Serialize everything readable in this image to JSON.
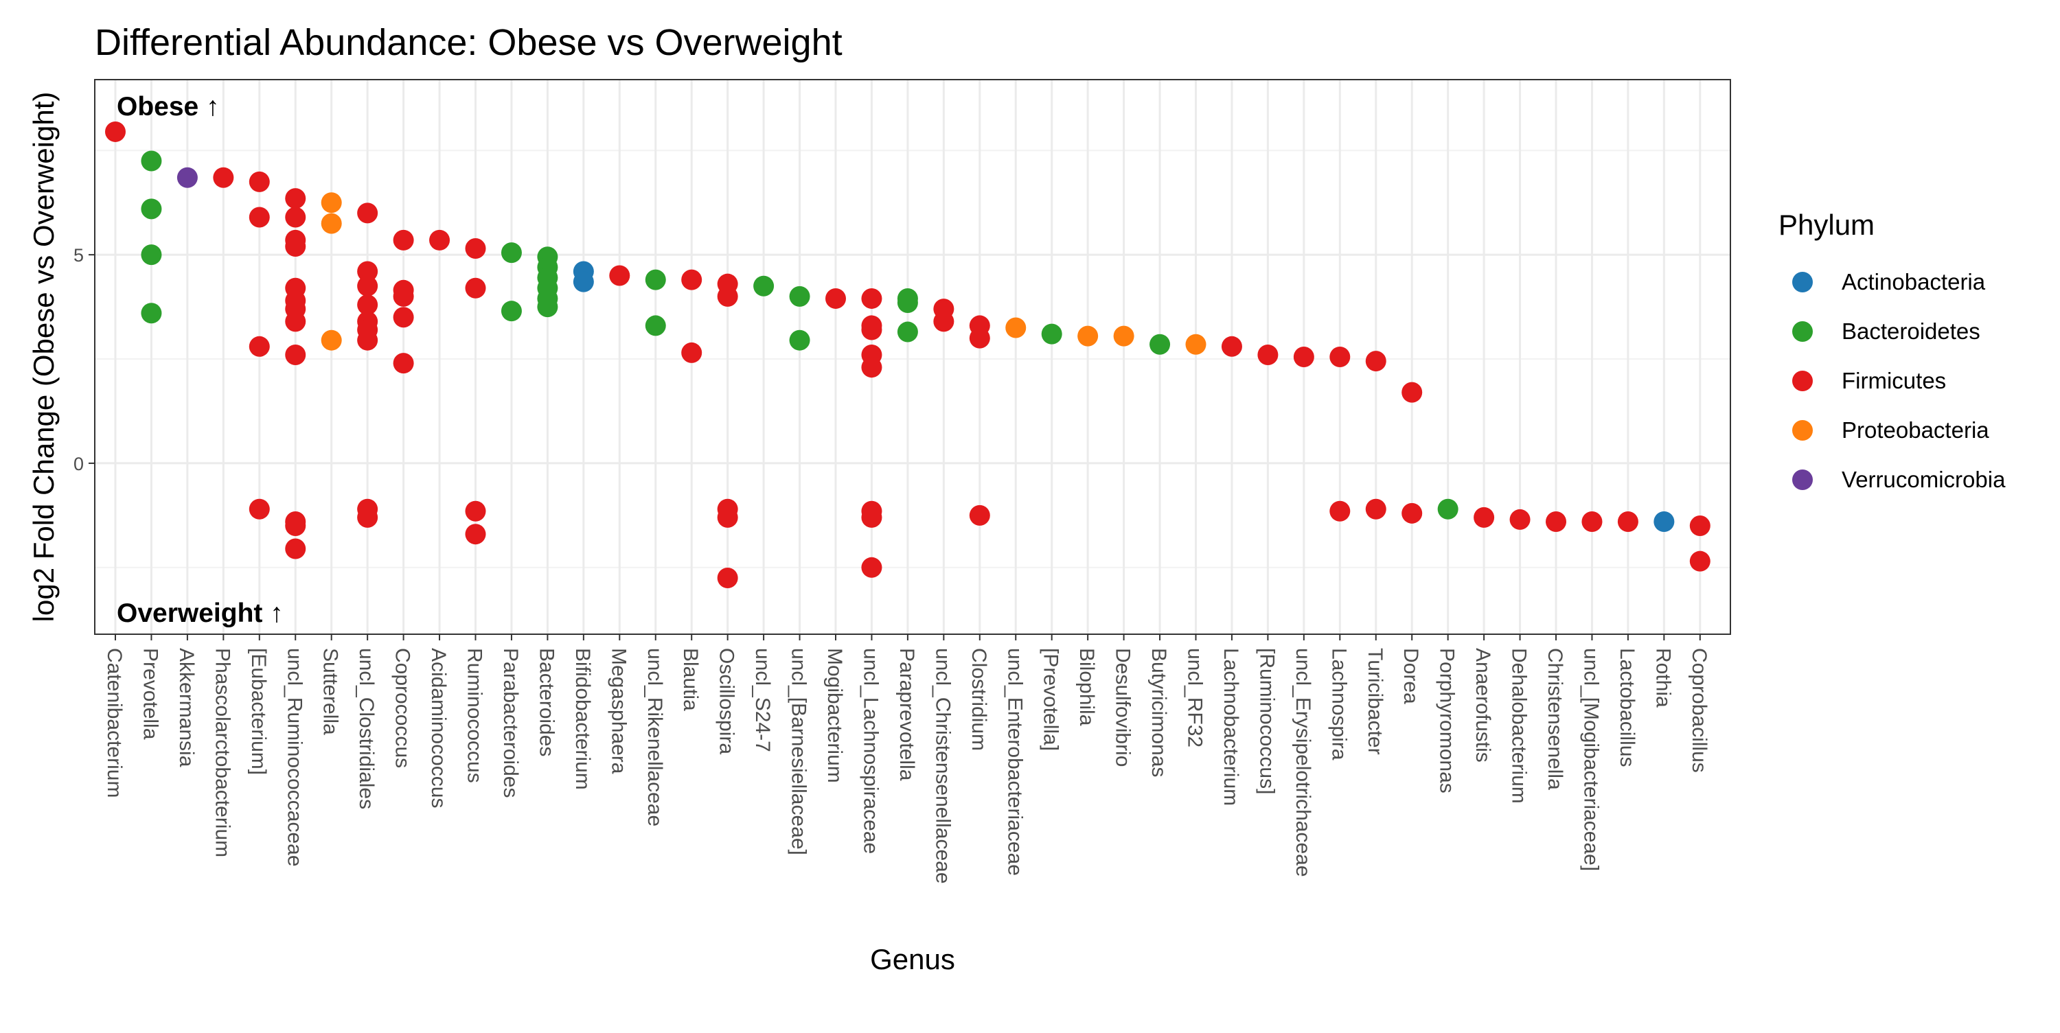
{
  "chart_data": {
    "type": "scatter",
    "title": "Differential Abundance: Obese vs Overweight",
    "xlabel": "Genus",
    "ylabel": "log2 Fold Change (Obese vs Overweight)",
    "ylim": [
      -4.1,
      9.2
    ],
    "yticks": [
      0,
      5
    ],
    "grid": true,
    "legend": {
      "title": "Phylum",
      "position": "right",
      "entries": [
        {
          "name": "Actinobacteria",
          "color": "#1f78b4"
        },
        {
          "name": "Bacteroidetes",
          "color": "#2ca02c"
        },
        {
          "name": "Firmicutes",
          "color": "#e31a1c"
        },
        {
          "name": "Proteobacteria",
          "color": "#ff7f0e"
        },
        {
          "name": "Verrucomicrobia",
          "color": "#6a3d9a"
        }
      ]
    },
    "annotations": [
      {
        "text": "Obese ↑",
        "position": "top-left"
      },
      {
        "text": "Overweight ↑",
        "position": "bottom-left"
      }
    ],
    "categories": [
      "Catenibacterium",
      "Prevotella",
      "Akkermansia",
      "Phascolarctobacterium",
      "[Eubacterium]",
      "uncl_Ruminococcaceae",
      "Sutterella",
      "uncl_Clostridiales",
      "Coprococcus",
      "Acidaminococcus",
      "Ruminococcus",
      "Parabacteroides",
      "Bacteroides",
      "Bifidobacterium",
      "Megasphaera",
      "uncl_Rikenellaceae",
      "Blautia",
      "Oscillospira",
      "uncl_S24-7",
      "uncl_[Barnesiellaceae]",
      "Mogibacterium",
      "uncl_Lachnospiraceae",
      "Paraprevotella",
      "uncl_Christensenellaceae",
      "Clostridium",
      "uncl_Enterobacteriaceae",
      "[Prevotella]",
      "Bilophila",
      "Desulfovibrio",
      "Butyricimonas",
      "uncl_RF32",
      "Lachnobacterium",
      "[Ruminococcus]",
      "uncl_Erysipelotrichaceae",
      "Lachnospira",
      "Turicibacter",
      "Dorea",
      "Porphyromonas",
      "Anaerofustis",
      "Dehalobacterium",
      "Christensenella",
      "uncl_[Mogibacteriaceae]",
      "Lactobacillus",
      "Rothia",
      "Coprobacillus"
    ],
    "points": [
      {
        "genus": "Catenibacterium",
        "phylum": "Firmicutes",
        "lfc": 7.95
      },
      {
        "genus": "Prevotella",
        "phylum": "Bacteroidetes",
        "lfc": 7.25
      },
      {
        "genus": "Prevotella",
        "phylum": "Bacteroidetes",
        "lfc": 6.1
      },
      {
        "genus": "Prevotella",
        "phylum": "Bacteroidetes",
        "lfc": 5.0
      },
      {
        "genus": "Prevotella",
        "phylum": "Bacteroidetes",
        "lfc": 3.6
      },
      {
        "genus": "Akkermansia",
        "phylum": "Verrucomicrobia",
        "lfc": 6.85
      },
      {
        "genus": "Phascolarctobacterium",
        "phylum": "Firmicutes",
        "lfc": 6.85
      },
      {
        "genus": "[Eubacterium]",
        "phylum": "Firmicutes",
        "lfc": 6.75
      },
      {
        "genus": "[Eubacterium]",
        "phylum": "Firmicutes",
        "lfc": 5.9
      },
      {
        "genus": "[Eubacterium]",
        "phylum": "Firmicutes",
        "lfc": 2.8
      },
      {
        "genus": "[Eubacterium]",
        "phylum": "Firmicutes",
        "lfc": -1.1
      },
      {
        "genus": "uncl_Ruminococcaceae",
        "phylum": "Firmicutes",
        "lfc": 6.35
      },
      {
        "genus": "uncl_Ruminococcaceae",
        "phylum": "Firmicutes",
        "lfc": 5.9
      },
      {
        "genus": "uncl_Ruminococcaceae",
        "phylum": "Firmicutes",
        "lfc": 5.35
      },
      {
        "genus": "uncl_Ruminococcaceae",
        "phylum": "Firmicutes",
        "lfc": 5.2
      },
      {
        "genus": "uncl_Ruminococcaceae",
        "phylum": "Firmicutes",
        "lfc": 4.2
      },
      {
        "genus": "uncl_Ruminococcaceae",
        "phylum": "Firmicutes",
        "lfc": 3.9
      },
      {
        "genus": "uncl_Ruminococcaceae",
        "phylum": "Firmicutes",
        "lfc": 3.7
      },
      {
        "genus": "uncl_Ruminococcaceae",
        "phylum": "Firmicutes",
        "lfc": 3.4
      },
      {
        "genus": "uncl_Ruminococcaceae",
        "phylum": "Firmicutes",
        "lfc": 2.6
      },
      {
        "genus": "uncl_Ruminococcaceae",
        "phylum": "Firmicutes",
        "lfc": -1.4
      },
      {
        "genus": "uncl_Ruminococcaceae",
        "phylum": "Firmicutes",
        "lfc": -1.5
      },
      {
        "genus": "uncl_Ruminococcaceae",
        "phylum": "Firmicutes",
        "lfc": -2.05
      },
      {
        "genus": "Sutterella",
        "phylum": "Proteobacteria",
        "lfc": 6.25
      },
      {
        "genus": "Sutterella",
        "phylum": "Proteobacteria",
        "lfc": 5.75
      },
      {
        "genus": "Sutterella",
        "phylum": "Proteobacteria",
        "lfc": 2.95
      },
      {
        "genus": "uncl_Clostridiales",
        "phylum": "Firmicutes",
        "lfc": 6.0
      },
      {
        "genus": "uncl_Clostridiales",
        "phylum": "Firmicutes",
        "lfc": 4.6
      },
      {
        "genus": "uncl_Clostridiales",
        "phylum": "Firmicutes",
        "lfc": 4.25
      },
      {
        "genus": "uncl_Clostridiales",
        "phylum": "Firmicutes",
        "lfc": 3.8
      },
      {
        "genus": "uncl_Clostridiales",
        "phylum": "Firmicutes",
        "lfc": 3.4
      },
      {
        "genus": "uncl_Clostridiales",
        "phylum": "Firmicutes",
        "lfc": 3.2
      },
      {
        "genus": "uncl_Clostridiales",
        "phylum": "Firmicutes",
        "lfc": 2.95
      },
      {
        "genus": "uncl_Clostridiales",
        "phylum": "Firmicutes",
        "lfc": -1.1
      },
      {
        "genus": "uncl_Clostridiales",
        "phylum": "Firmicutes",
        "lfc": -1.3
      },
      {
        "genus": "Coprococcus",
        "phylum": "Firmicutes",
        "lfc": 5.35
      },
      {
        "genus": "Coprococcus",
        "phylum": "Firmicutes",
        "lfc": 4.15
      },
      {
        "genus": "Coprococcus",
        "phylum": "Firmicutes",
        "lfc": 4.0
      },
      {
        "genus": "Coprococcus",
        "phylum": "Firmicutes",
        "lfc": 3.5
      },
      {
        "genus": "Coprococcus",
        "phylum": "Firmicutes",
        "lfc": 2.4
      },
      {
        "genus": "Acidaminococcus",
        "phylum": "Firmicutes",
        "lfc": 5.35
      },
      {
        "genus": "Ruminococcus",
        "phylum": "Firmicutes",
        "lfc": 5.15
      },
      {
        "genus": "Ruminococcus",
        "phylum": "Firmicutes",
        "lfc": 4.2
      },
      {
        "genus": "Ruminococcus",
        "phylum": "Firmicutes",
        "lfc": -1.15
      },
      {
        "genus": "Ruminococcus",
        "phylum": "Firmicutes",
        "lfc": -1.7
      },
      {
        "genus": "Parabacteroides",
        "phylum": "Bacteroidetes",
        "lfc": 5.05
      },
      {
        "genus": "Parabacteroides",
        "phylum": "Bacteroidetes",
        "lfc": 3.65
      },
      {
        "genus": "Bacteroides",
        "phylum": "Bacteroidetes",
        "lfc": 4.95
      },
      {
        "genus": "Bacteroides",
        "phylum": "Bacteroidetes",
        "lfc": 4.7
      },
      {
        "genus": "Bacteroides",
        "phylum": "Bacteroidetes",
        "lfc": 4.45
      },
      {
        "genus": "Bacteroides",
        "phylum": "Bacteroidetes",
        "lfc": 4.2
      },
      {
        "genus": "Bacteroides",
        "phylum": "Bacteroidetes",
        "lfc": 3.95
      },
      {
        "genus": "Bacteroides",
        "phylum": "Bacteroidetes",
        "lfc": 3.75
      },
      {
        "genus": "Bifidobacterium",
        "phylum": "Actinobacteria",
        "lfc": 4.6
      },
      {
        "genus": "Bifidobacterium",
        "phylum": "Actinobacteria",
        "lfc": 4.35
      },
      {
        "genus": "Megasphaera",
        "phylum": "Firmicutes",
        "lfc": 4.5
      },
      {
        "genus": "uncl_Rikenellaceae",
        "phylum": "Bacteroidetes",
        "lfc": 4.4
      },
      {
        "genus": "uncl_Rikenellaceae",
        "phylum": "Bacteroidetes",
        "lfc": 3.3
      },
      {
        "genus": "Blautia",
        "phylum": "Firmicutes",
        "lfc": 4.4
      },
      {
        "genus": "Blautia",
        "phylum": "Firmicutes",
        "lfc": 2.65
      },
      {
        "genus": "Oscillospira",
        "phylum": "Firmicutes",
        "lfc": 4.3
      },
      {
        "genus": "Oscillospira",
        "phylum": "Firmicutes",
        "lfc": 4.0
      },
      {
        "genus": "Oscillospira",
        "phylum": "Firmicutes",
        "lfc": -1.1
      },
      {
        "genus": "Oscillospira",
        "phylum": "Firmicutes",
        "lfc": -1.3
      },
      {
        "genus": "Oscillospira",
        "phylum": "Firmicutes",
        "lfc": -2.75
      },
      {
        "genus": "uncl_S24-7",
        "phylum": "Bacteroidetes",
        "lfc": 4.25
      },
      {
        "genus": "uncl_[Barnesiellaceae]",
        "phylum": "Bacteroidetes",
        "lfc": 4.0
      },
      {
        "genus": "uncl_[Barnesiellaceae]",
        "phylum": "Bacteroidetes",
        "lfc": 2.95
      },
      {
        "genus": "Mogibacterium",
        "phylum": "Firmicutes",
        "lfc": 3.95
      },
      {
        "genus": "uncl_Lachnospiraceae",
        "phylum": "Firmicutes",
        "lfc": 3.95
      },
      {
        "genus": "uncl_Lachnospiraceae",
        "phylum": "Firmicutes",
        "lfc": 3.3
      },
      {
        "genus": "uncl_Lachnospiraceae",
        "phylum": "Firmicutes",
        "lfc": 3.2
      },
      {
        "genus": "uncl_Lachnospiraceae",
        "phylum": "Firmicutes",
        "lfc": 2.6
      },
      {
        "genus": "uncl_Lachnospiraceae",
        "phylum": "Firmicutes",
        "lfc": 2.3
      },
      {
        "genus": "uncl_Lachnospiraceae",
        "phylum": "Firmicutes",
        "lfc": -1.15
      },
      {
        "genus": "uncl_Lachnospiraceae",
        "phylum": "Firmicutes",
        "lfc": -1.3
      },
      {
        "genus": "uncl_Lachnospiraceae",
        "phylum": "Firmicutes",
        "lfc": -2.5
      },
      {
        "genus": "Paraprevotella",
        "phylum": "Bacteroidetes",
        "lfc": 3.95
      },
      {
        "genus": "Paraprevotella",
        "phylum": "Bacteroidetes",
        "lfc": 3.85
      },
      {
        "genus": "Paraprevotella",
        "phylum": "Bacteroidetes",
        "lfc": 3.15
      },
      {
        "genus": "uncl_Christensenellaceae",
        "phylum": "Firmicutes",
        "lfc": 3.7
      },
      {
        "genus": "uncl_Christensenellaceae",
        "phylum": "Firmicutes",
        "lfc": 3.4
      },
      {
        "genus": "Clostridium",
        "phylum": "Firmicutes",
        "lfc": 3.3
      },
      {
        "genus": "Clostridium",
        "phylum": "Firmicutes",
        "lfc": 3.0
      },
      {
        "genus": "Clostridium",
        "phylum": "Firmicutes",
        "lfc": -1.25
      },
      {
        "genus": "uncl_Enterobacteriaceae",
        "phylum": "Proteobacteria",
        "lfc": 3.25
      },
      {
        "genus": "[Prevotella]",
        "phylum": "Bacteroidetes",
        "lfc": 3.1
      },
      {
        "genus": "Bilophila",
        "phylum": "Proteobacteria",
        "lfc": 3.05
      },
      {
        "genus": "Desulfovibrio",
        "phylum": "Proteobacteria",
        "lfc": 3.05
      },
      {
        "genus": "Butyricimonas",
        "phylum": "Bacteroidetes",
        "lfc": 2.85
      },
      {
        "genus": "uncl_RF32",
        "phylum": "Proteobacteria",
        "lfc": 2.85
      },
      {
        "genus": "Lachnobacterium",
        "phylum": "Firmicutes",
        "lfc": 2.8
      },
      {
        "genus": "[Ruminococcus]",
        "phylum": "Firmicutes",
        "lfc": 2.6
      },
      {
        "genus": "uncl_Erysipelotrichaceae",
        "phylum": "Firmicutes",
        "lfc": 2.55
      },
      {
        "genus": "Lachnospira",
        "phylum": "Firmicutes",
        "lfc": 2.55
      },
      {
        "genus": "Lachnospira",
        "phylum": "Firmicutes",
        "lfc": -1.15
      },
      {
        "genus": "Turicibacter",
        "phylum": "Firmicutes",
        "lfc": 2.45
      },
      {
        "genus": "Turicibacter",
        "phylum": "Firmicutes",
        "lfc": -1.1
      },
      {
        "genus": "Dorea",
        "phylum": "Firmicutes",
        "lfc": 1.7
      },
      {
        "genus": "Dorea",
        "phylum": "Firmicutes",
        "lfc": -1.2
      },
      {
        "genus": "Porphyromonas",
        "phylum": "Bacteroidetes",
        "lfc": -1.1
      },
      {
        "genus": "Anaerofustis",
        "phylum": "Firmicutes",
        "lfc": -1.3
      },
      {
        "genus": "Dehalobacterium",
        "phylum": "Firmicutes",
        "lfc": -1.35
      },
      {
        "genus": "Christensenella",
        "phylum": "Firmicutes",
        "lfc": -1.4
      },
      {
        "genus": "uncl_[Mogibacteriaceae]",
        "phylum": "Firmicutes",
        "lfc": -1.4
      },
      {
        "genus": "Lactobacillus",
        "phylum": "Firmicutes",
        "lfc": -1.4
      },
      {
        "genus": "Rothia",
        "phylum": "Actinobacteria",
        "lfc": -1.4
      },
      {
        "genus": "Coprobacillus",
        "phylum": "Firmicutes",
        "lfc": -1.5
      },
      {
        "genus": "Coprobacillus",
        "phylum": "Firmicutes",
        "lfc": -2.35
      }
    ]
  }
}
